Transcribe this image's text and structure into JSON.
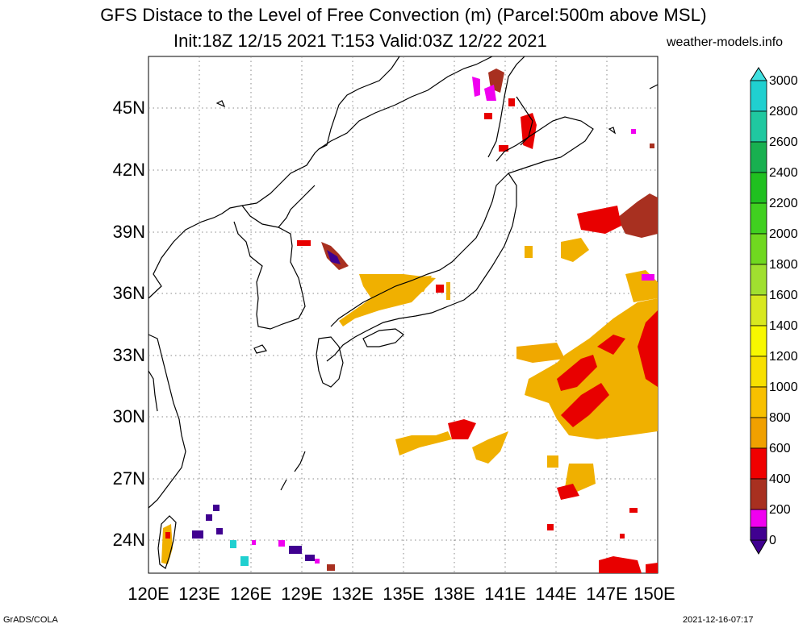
{
  "title": {
    "line1": "GFS Distace to the Level of Free Convection (m) (Parcel:500m above MSL)",
    "line2": "Init:18Z 12/15 2021 T:153 Valid:03Z 12/22 2021",
    "site": "weather-models.info"
  },
  "axes": {
    "lat_labels": [
      "45N",
      "42N",
      "39N",
      "36N",
      "33N",
      "30N",
      "27N",
      "24N"
    ],
    "lon_labels": [
      "120E",
      "123E",
      "126E",
      "129E",
      "132E",
      "135E",
      "138E",
      "141E",
      "144E",
      "147E",
      "150E"
    ],
    "lon_range": [
      120,
      150
    ],
    "lat_range": [
      22.5,
      47.5
    ],
    "grid": "dotted"
  },
  "colorbar": {
    "labels": [
      "3000",
      "2800",
      "2600",
      "2400",
      "2200",
      "2000",
      "1800",
      "1600",
      "1400",
      "1200",
      "1000",
      "800",
      "600",
      "400",
      "200",
      "0"
    ],
    "colors": [
      "#20d0d0",
      "#20c8a0",
      "#18b050",
      "#20c020",
      "#40d020",
      "#70d820",
      "#a0e030",
      "#d8e820",
      "#f8f800",
      "#f8e000",
      "#f8c000",
      "#f0a000",
      "#f00000",
      "#a83020",
      "#f000f0",
      "#400090"
    ]
  },
  "footer": {
    "left": "GrADS/COLA",
    "right": "2021-12-16-07:17"
  }
}
